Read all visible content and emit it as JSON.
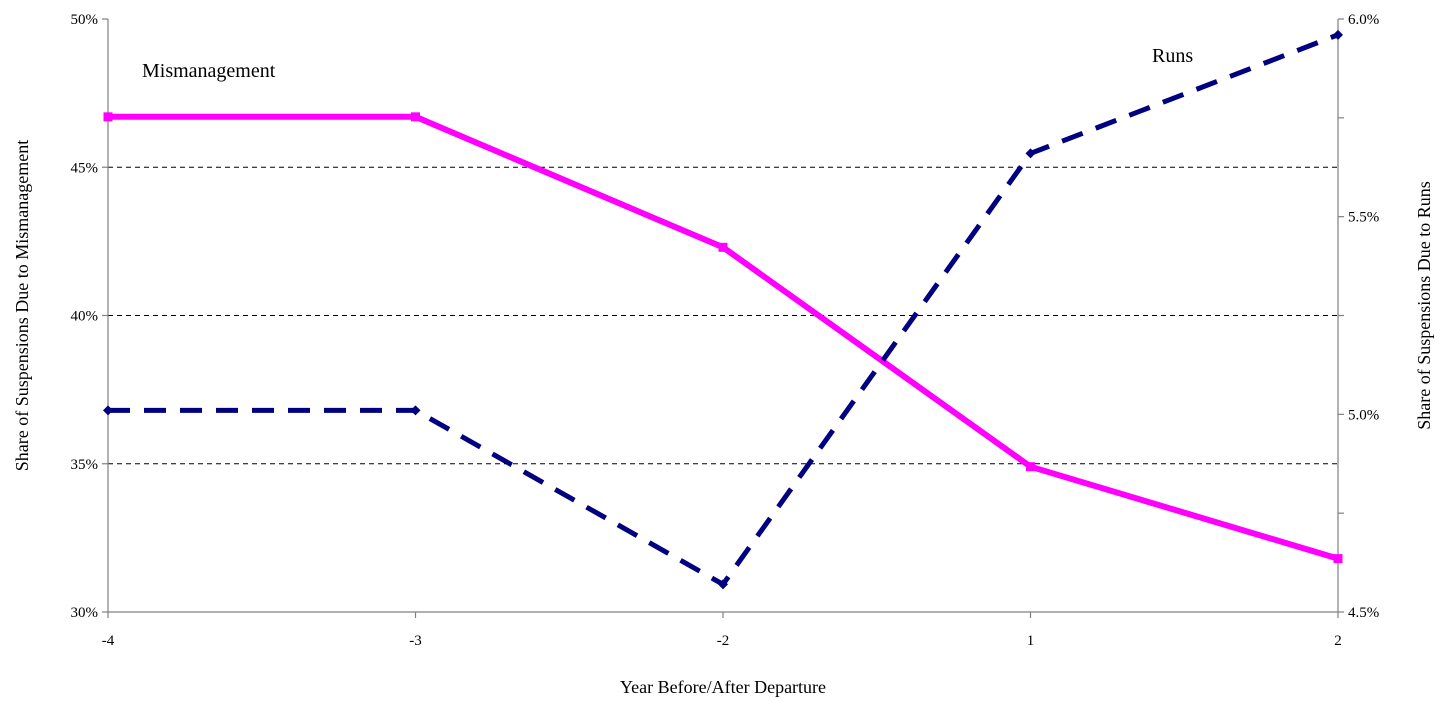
{
  "chart_data": {
    "type": "line",
    "x": [
      "-4",
      "-3",
      "-2",
      "1",
      "2"
    ],
    "xlabel": "Year Before/After Departure",
    "y_left": {
      "label": "Share of Suspensions Due to Mismanagement",
      "lim": [
        0.3,
        0.5
      ],
      "ticks": [
        "30%",
        "35%",
        "40%",
        "45%",
        "50%"
      ],
      "tick_values": [
        0.3,
        0.35,
        0.4,
        0.45,
        0.5
      ]
    },
    "y_right": {
      "label": "Share of Suspensions Due to Runs",
      "lim": [
        0.045,
        0.06
      ],
      "ticks": [
        "4.5%",
        "5.0%",
        "5.5%",
        "6.0%"
      ],
      "tick_values": [
        0.045,
        0.05,
        0.055,
        0.06
      ]
    },
    "grid": true,
    "series": [
      {
        "name": "Mismanagement",
        "axis": "left",
        "style": "solid",
        "color": "#ff00ff",
        "marker": "square",
        "values": [
          0.467,
          0.467,
          0.423,
          0.349,
          0.318
        ]
      },
      {
        "name": "Runs",
        "axis": "right",
        "style": "dashed",
        "color": "#000080",
        "marker": "diamond",
        "values": [
          0.0501,
          0.0501,
          0.0457,
          0.0566,
          0.0596
        ]
      }
    ]
  }
}
